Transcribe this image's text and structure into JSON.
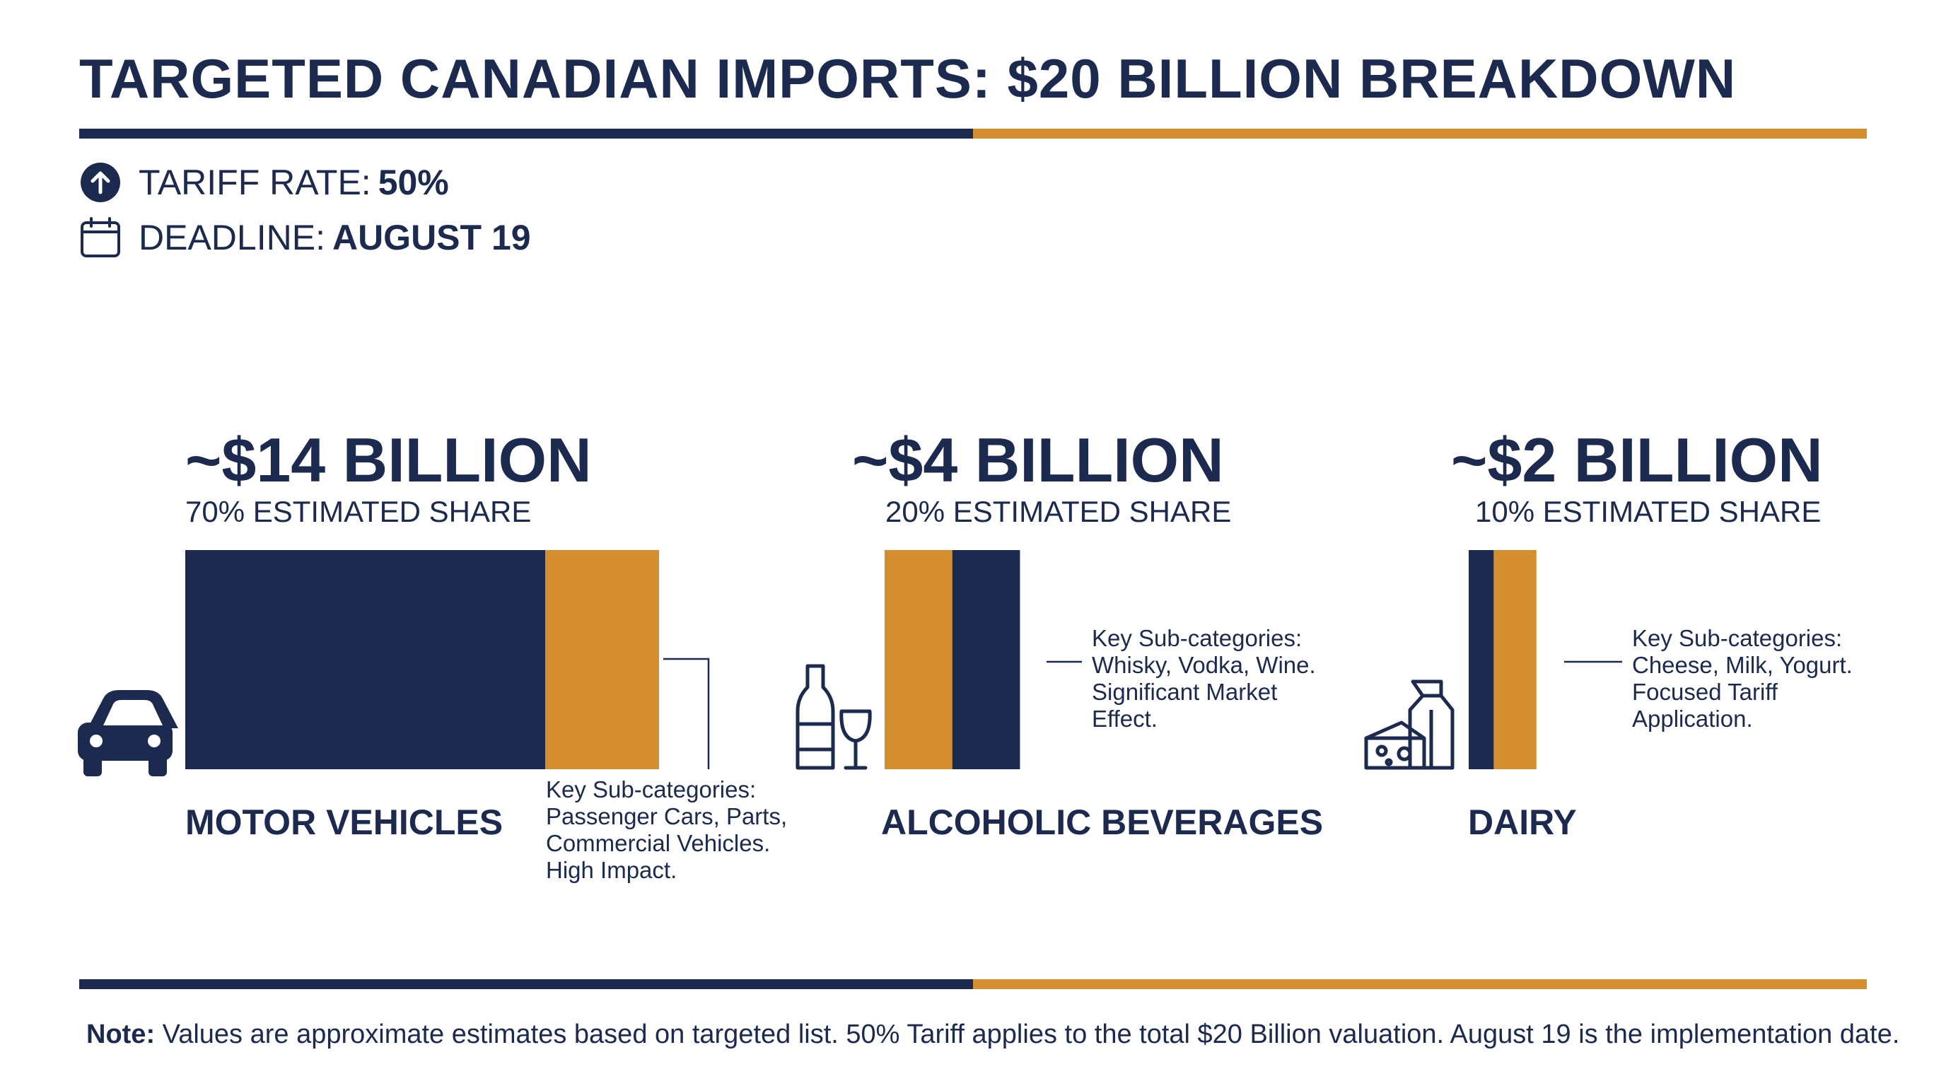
{
  "header": {
    "title": "TARGETED CANADIAN IMPORTS: $20 BILLION BREAKDOWN",
    "tariff_label": "TARIFF RATE:",
    "tariff_value": "50%",
    "deadline_label": "DEADLINE:",
    "deadline_value": "AUGUST 19"
  },
  "colors": {
    "navy": "#1b2a4e",
    "gold": "#d48d2f"
  },
  "chart_data": {
    "type": "bar",
    "title": "TARGETED CANADIAN IMPORTS: $20 BILLION BREAKDOWN",
    "total_value": 20,
    "categories": [
      {
        "name": "MOTOR VEHICLES",
        "amount_label": "~$14 BILLION",
        "value": 14,
        "share": 70,
        "share_label": "70% ESTIMATED SHARE",
        "icon": "car-icon",
        "note_lines": [
          "Key Sub-categories:",
          "Passenger Cars, Parts,",
          "Commercial Vehicles.",
          "High Impact."
        ]
      },
      {
        "name": "ALCOHOLIC BEVERAGES",
        "amount_label": "~$4 BILLION",
        "value": 4,
        "share": 20,
        "share_label": "20% ESTIMATED SHARE",
        "icon": "wine-bottle-glass-icon",
        "note_lines": [
          "Key Sub-categories:",
          "Whisky, Vodka, Wine.",
          "Significant Market",
          "Effect."
        ]
      },
      {
        "name": "DAIRY",
        "amount_label": "~$2 BILLION",
        "value": 2,
        "share": 10,
        "share_label": "10% ESTIMATED SHARE",
        "icon": "cheese-milk-carton-icon",
        "note_lines": [
          "Key Sub-categories:",
          "Cheese, Milk, Yogurt.",
          "Focused Tariff",
          "Application."
        ]
      }
    ]
  },
  "footer": {
    "note_label": "Note:",
    "note_text": "Values are approximate estimates based on targeted list. 50% Tariff applies to the total $20 Billion valuation. August 19 is the implementation date."
  }
}
